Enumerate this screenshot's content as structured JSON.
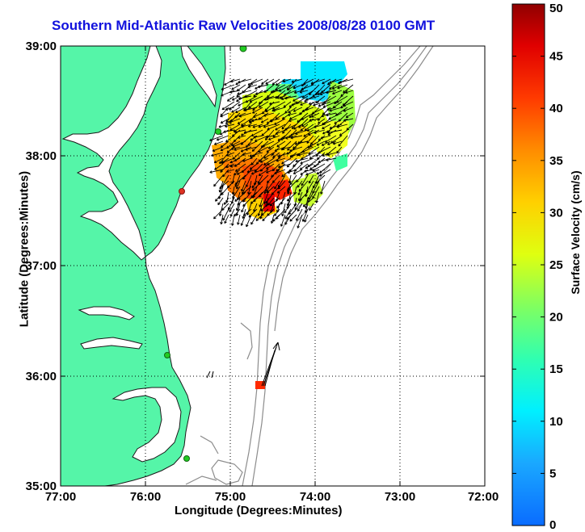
{
  "title": "Southern Mid-Atlantic Raw Velocities 2008/08/28 0100 GMT",
  "xlabel": "Longitude (Degrees:Minutes)",
  "ylabel": "Latitude (Degrees:Minutes)",
  "x_ticks": [
    "77:00",
    "76:00",
    "75:00",
    "74:00",
    "73:00",
    "72:00"
  ],
  "y_ticks": [
    "39:00",
    "38:00",
    "37:00",
    "36:00",
    "35:00"
  ],
  "colorbar": {
    "label": "Surface Velocity (cm/s)",
    "ticks": [
      "0",
      "5",
      "10",
      "15",
      "20",
      "25",
      "30",
      "35",
      "40",
      "45",
      "50"
    ],
    "range": [
      0,
      50
    ]
  },
  "colors": {
    "land": "#55f5a8",
    "water": "#ffffff",
    "coastline": "#1a1a1a",
    "bathymetry": "#8c8c8c",
    "gridlines": "#000000",
    "title": "#1111dd",
    "station_marker": "#22cc22",
    "station_marker_alt": "#dd3322"
  },
  "chart_data": {
    "type": "heatmap",
    "title": "Southern Mid-Atlantic Raw Velocities 2008/08/28 0100 GMT",
    "xlabel": "Longitude (Degrees:Minutes)",
    "ylabel": "Latitude (Degrees:Minutes)",
    "xlim": [
      -77.0,
      -72.0
    ],
    "ylim": [
      35.0,
      39.0
    ],
    "x_ticks": [
      "77:00",
      "76:00",
      "75:00",
      "74:00",
      "73:00",
      "72:00"
    ],
    "y_ticks": [
      "39:00",
      "38:00",
      "37:00",
      "36:00",
      "35:00"
    ],
    "grid": "dotted",
    "colorbar_range": [
      0,
      50
    ],
    "colorbar_label": "Surface Velocity (cm/s)",
    "velocity_regions": [
      {
        "lon": -74.3,
        "lat": 38.85,
        "value_cms": 10
      },
      {
        "lon": -74.55,
        "lat": 38.6,
        "value_cms": 18
      },
      {
        "lon": -74.85,
        "lat": 38.35,
        "value_cms": 26
      },
      {
        "lon": -74.6,
        "lat": 38.2,
        "value_cms": 30
      },
      {
        "lon": -74.3,
        "lat": 38.05,
        "value_cms": 22
      },
      {
        "lon": -74.9,
        "lat": 37.95,
        "value_cms": 35
      },
      {
        "lon": -74.5,
        "lat": 37.8,
        "value_cms": 42
      },
      {
        "lon": -74.2,
        "lat": 37.75,
        "value_cms": 28
      },
      {
        "lon": -74.75,
        "lat": 37.6,
        "value_cms": 32
      },
      {
        "lon": -74.4,
        "lat": 35.9,
        "value_cms": 46
      }
    ],
    "stations": [
      {
        "lon": -74.85,
        "lat": 38.98,
        "marker": "green"
      },
      {
        "lon": -75.15,
        "lat": 38.24,
        "marker": "green"
      },
      {
        "lon": -75.55,
        "lat": 37.7,
        "marker": "red"
      },
      {
        "lon": -75.7,
        "lat": 36.2,
        "marker": "green"
      },
      {
        "lon": -75.55,
        "lat": 35.25,
        "marker": "green"
      }
    ]
  }
}
